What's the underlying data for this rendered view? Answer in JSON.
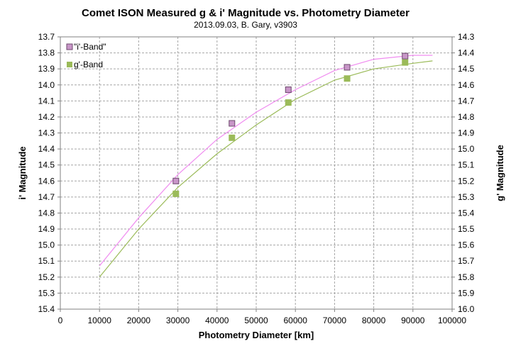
{
  "chart_data": {
    "type": "scatter",
    "title": "Comet ISON Measured g & i' Magnitude  vs. Photometry  Diameter",
    "subtitle": "2013.09.03,  B. Gary,  v3903",
    "xlabel": "Photometry Diameter  [km]",
    "ylabel_left": "i' Magnitude",
    "ylabel_right": "g' Magnitude",
    "xlim": [
      0,
      100000
    ],
    "x_ticks": [
      0,
      10000,
      20000,
      30000,
      40000,
      50000,
      60000,
      70000,
      80000,
      90000,
      100000
    ],
    "y_left_lim": [
      13.7,
      15.4
    ],
    "y_left_ticks": [
      "13.7",
      "13.8",
      "13.9",
      "14.0",
      "14.1",
      "14.2",
      "14.3",
      "14.4",
      "14.5",
      "14.6",
      "14.7",
      "14.8",
      "14.9",
      "15.0",
      "15.1",
      "15.2",
      "15.3",
      "15.4"
    ],
    "y_right_lim": [
      14.3,
      16.0
    ],
    "y_right_ticks": [
      "14.3",
      "14.4",
      "14.5",
      "14.6",
      "14.7",
      "14.8",
      "14.9",
      "15.0",
      "15.1",
      "15.2",
      "15.3",
      "15.4",
      "15.5",
      "15.6",
      "15.7",
      "15.8",
      "15.9",
      "16.0"
    ],
    "y_inverted": true,
    "grid": true,
    "legend_position": "top-left",
    "series": [
      {
        "name": "\"i'-Band\"",
        "axis": "left",
        "marker": "square",
        "marker_color": "#c896c8",
        "marker_edge": "#6e4a6e",
        "line_color": "#f08cf0",
        "points_x": [
          29500,
          43800,
          58200,
          73200,
          88000
        ],
        "points_y": [
          14.6,
          14.24,
          14.03,
          13.89,
          13.82
        ],
        "fit_x": [
          10000,
          20000,
          30000,
          40000,
          50000,
          60000,
          70000,
          80000,
          90000,
          95000
        ],
        "fit_y": [
          15.13,
          14.83,
          14.56,
          14.34,
          14.17,
          14.03,
          13.91,
          13.84,
          13.815,
          13.815
        ]
      },
      {
        "name": "g'-Band",
        "axis": "right",
        "marker": "square",
        "marker_color": "#9bbb59",
        "marker_edge": "#9bbb59",
        "line_color": "#9bbb59",
        "points_x": [
          29500,
          43800,
          58200,
          73200,
          88000
        ],
        "points_y": [
          15.28,
          14.93,
          14.71,
          14.56,
          14.46
        ],
        "fit_x": [
          10000,
          20000,
          30000,
          40000,
          50000,
          60000,
          70000,
          80000,
          90000,
          95000
        ],
        "fit_y": [
          15.8,
          15.5,
          15.24,
          15.03,
          14.85,
          14.69,
          14.57,
          14.5,
          14.465,
          14.45
        ]
      }
    ]
  }
}
